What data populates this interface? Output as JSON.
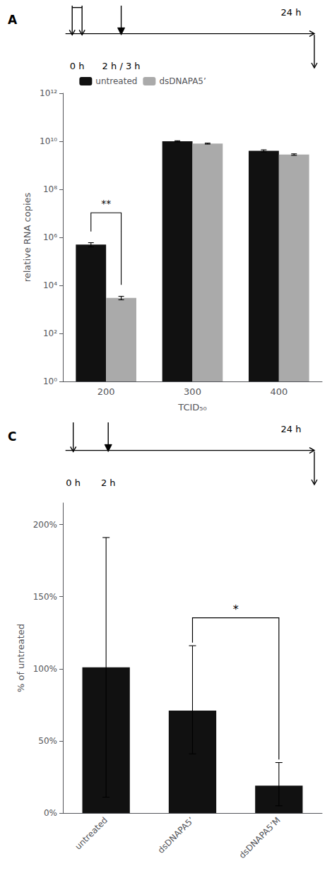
{
  "chart_data": [
    {
      "type": "bar",
      "title": "A",
      "xlabel": "TCID₅₀",
      "ylabel": "relative RNA copies",
      "categories": [
        "200",
        "300",
        "400"
      ],
      "series": [
        {
          "name": "untreated",
          "color": "#111111",
          "values": [
            500000,
            10000000000,
            4000000000
          ],
          "err_low": [
            100000,
            500000000,
            400000000
          ],
          "err_high": [
            100000,
            500000000,
            400000000
          ]
        },
        {
          "name": "dsDNAPA5’",
          "color": "#aaaaaa",
          "values": [
            3000,
            8000000000,
            2800000000
          ],
          "err_low": [
            500,
            400000000,
            200000000
          ],
          "err_high": [
            500,
            400000000,
            200000000
          ]
        }
      ],
      "log": "y",
      "ylim": [
        1,
        1000000000000
      ],
      "yticks": [
        {
          "value": 1,
          "label": "10⁰"
        },
        {
          "value": 100,
          "label": "10²"
        },
        {
          "value": 10000,
          "label": "10⁴"
        },
        {
          "value": 1000000,
          "label": "10⁶"
        },
        {
          "value": 100000000,
          "label": "10⁸"
        },
        {
          "value": 10000000000,
          "label": "10¹⁰"
        },
        {
          "value": 1000000000000,
          "label": "10¹²"
        }
      ],
      "grid": false,
      "legend": "upper left",
      "annotations": [
        {
          "type": "timeline",
          "text": "0 h"
        },
        {
          "type": "timeline",
          "text": "2 h / 3 h"
        },
        {
          "type": "timeline",
          "text": "24 h"
        },
        {
          "type": "bracket",
          "text": "**",
          "categories": [
            "200"
          ]
        }
      ]
    },
    {
      "type": "bar",
      "title": "C",
      "ylabel": "% of untreated",
      "categories": [
        "untreated",
        "dsDNAPA5’",
        "dsDNAPA5’M"
      ],
      "values": [
        101,
        71,
        19
      ],
      "err_low": [
        90,
        30,
        14
      ],
      "err_high": [
        90,
        45,
        16
      ],
      "color": "#111111",
      "ylim": [
        0,
        215
      ],
      "yticks": [
        {
          "value": 0,
          "label": "0%"
        },
        {
          "value": 50,
          "label": "50%"
        },
        {
          "value": 100,
          "label": "100%"
        },
        {
          "value": 150,
          "label": "150%"
        },
        {
          "value": 200,
          "label": "200%"
        }
      ],
      "grid": false,
      "annotations": [
        {
          "type": "timeline",
          "text": "0 h"
        },
        {
          "type": "timeline",
          "text": "2 h"
        },
        {
          "type": "timeline",
          "text": "24 h"
        },
        {
          "type": "bracket",
          "text": "*",
          "categories": [
            "dsDNAPA5’",
            "dsDNAPA5’M"
          ]
        }
      ]
    }
  ]
}
